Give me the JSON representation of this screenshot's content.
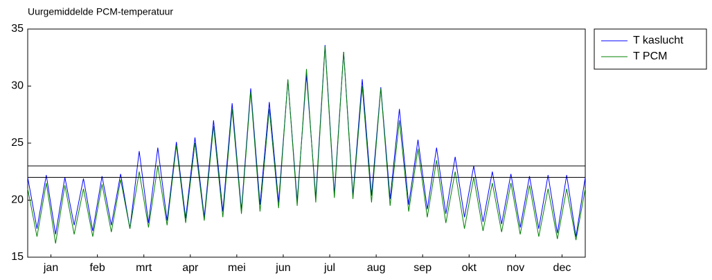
{
  "chart_data": {
    "type": "line",
    "title": "Uurgemiddelde PCM-temperatuur",
    "x": [
      0,
      0.2,
      0.4,
      0.6,
      0.8,
      1,
      1.2,
      1.4,
      1.6,
      1.8,
      2,
      2.2,
      2.4,
      2.6,
      2.8,
      3,
      3.2,
      3.4,
      3.6,
      3.8,
      4,
      4.2,
      4.4,
      4.6,
      4.8,
      5,
      5.2,
      5.4,
      5.6,
      5.8,
      6,
      6.2,
      6.4,
      6.6,
      6.8,
      7,
      7.2,
      7.4,
      7.6,
      7.8,
      8,
      8.2,
      8.4,
      8.6,
      8.8,
      9,
      9.2,
      9.4,
      9.6,
      9.8,
      10,
      10.2,
      10.4,
      10.6,
      10.8,
      11,
      11.2,
      11.4,
      11.6,
      11.8,
      12
    ],
    "series": [
      {
        "name": "T kaslucht",
        "color": "#0000ff",
        "values": [
          22,
          17.5,
          22.2,
          17,
          22,
          17.8,
          21.9,
          17.3,
          22.1,
          17.8,
          22.3,
          17.5,
          24.3,
          18,
          24.6,
          18.2,
          25.1,
          18.4,
          25.5,
          18.5,
          27,
          19,
          28.5,
          19.1,
          29.8,
          19.6,
          28.6,
          19.8,
          30.5,
          19.9,
          31,
          20.2,
          33.6,
          20.5,
          33,
          20.4,
          30.6,
          20.4,
          29.9,
          20.1,
          28,
          19.6,
          25.3,
          19.2,
          24.6,
          18.8,
          23.8,
          18.5,
          23,
          18.1,
          22.5,
          17.9,
          22.3,
          17.6,
          22.1,
          17.5,
          22.2,
          17.1,
          22.2,
          16.8,
          22
        ]
      },
      {
        "name": "T PCM",
        "color": "#008000",
        "values": [
          21,
          16.8,
          21.5,
          16.2,
          21.3,
          17,
          21,
          16.8,
          21.4,
          17.2,
          21.8,
          17.5,
          22.5,
          17.6,
          23,
          17.8,
          24.8,
          18,
          25,
          18.2,
          26.5,
          18.5,
          28,
          18.8,
          29.5,
          19,
          28,
          19.3,
          30.6,
          19.5,
          31.5,
          19.8,
          33.5,
          20.2,
          33,
          20.1,
          30,
          19.8,
          29.8,
          19.5,
          27,
          19,
          24.5,
          18.5,
          23.5,
          18,
          22.5,
          17.5,
          22,
          17.3,
          21.5,
          17.2,
          21.5,
          17,
          21.3,
          16.8,
          21,
          16.6,
          21,
          16.5,
          21
        ]
      }
    ],
    "hlines": [
      22,
      23
    ],
    "xlim": [
      0,
      12
    ],
    "xticks": [
      {
        "value": 0.5,
        "label": "jan"
      },
      {
        "value": 1.5,
        "label": "feb"
      },
      {
        "value": 2.5,
        "label": "mrt"
      },
      {
        "value": 3.5,
        "label": "apr"
      },
      {
        "value": 4.5,
        "label": "mei"
      },
      {
        "value": 5.5,
        "label": "jun"
      },
      {
        "value": 6.5,
        "label": "jul"
      },
      {
        "value": 7.5,
        "label": "aug"
      },
      {
        "value": 8.5,
        "label": "sep"
      },
      {
        "value": 9.5,
        "label": "okt"
      },
      {
        "value": 10.5,
        "label": "nov"
      },
      {
        "value": 11.5,
        "label": "dec"
      }
    ],
    "ylim": [
      15,
      35
    ],
    "yticks": [
      15,
      20,
      25,
      30,
      35
    ],
    "grid": false,
    "legend": "outside-right"
  }
}
